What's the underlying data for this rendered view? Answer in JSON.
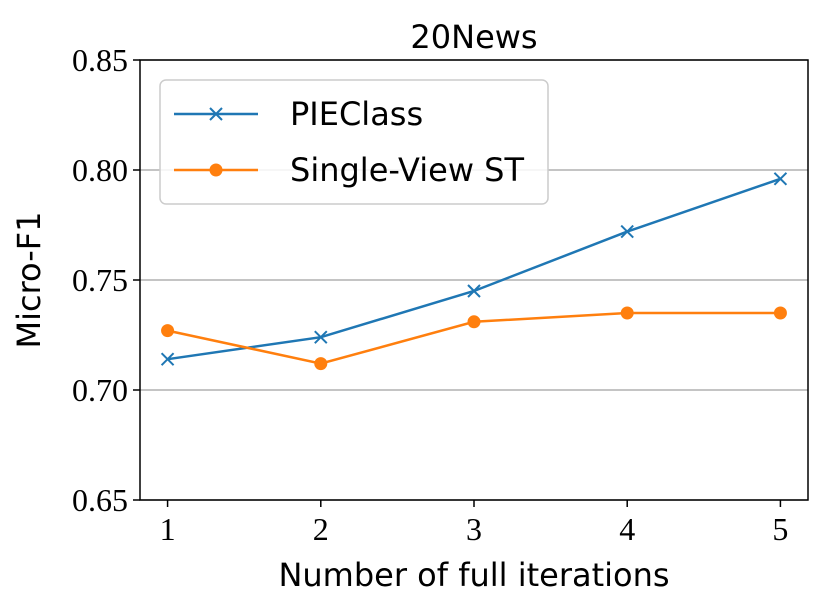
{
  "chart_data": {
    "type": "line",
    "title": "20News",
    "x_label": "Number of full iterations",
    "y_label": "Micro-F1",
    "x": [
      1,
      2,
      3,
      4,
      5
    ],
    "series": [
      {
        "name": "PIEClass",
        "color": "#1f77b4",
        "marker": "x",
        "values": [
          0.714,
          0.724,
          0.745,
          0.772,
          0.796
        ]
      },
      {
        "name": "Single-View ST",
        "color": "#ff7f0e",
        "marker": "o",
        "values": [
          0.727,
          0.712,
          0.731,
          0.735,
          0.735
        ]
      }
    ],
    "xlim": [
      0.82,
      5.18
    ],
    "xticks": [
      1,
      2,
      3,
      4,
      5
    ],
    "ylim": [
      0.65,
      0.85
    ],
    "yticks": [
      0.65,
      {
        "value": 0.7,
        "label": "0.70"
      },
      0.75,
      {
        "value": 0.8,
        "label": "0.80"
      },
      0.85
    ],
    "grid": "y",
    "legend": "upper left"
  }
}
